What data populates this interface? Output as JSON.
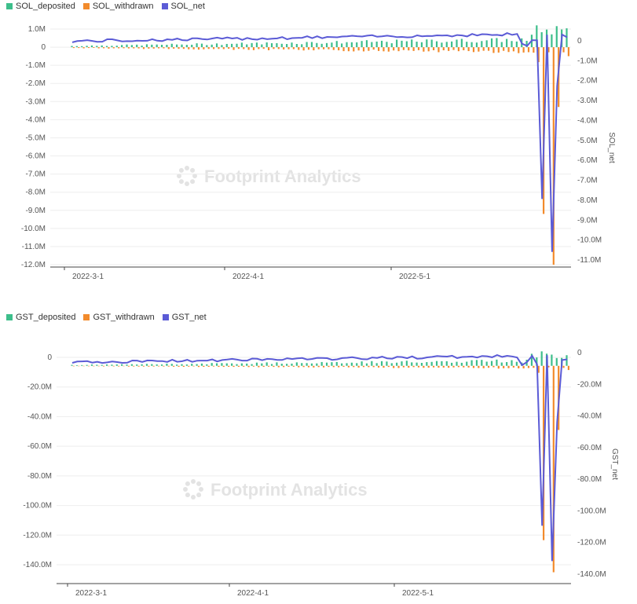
{
  "colors": {
    "deposited": "#3DBE8B",
    "withdrawn": "#F28B2C",
    "net": "#5B5BD6",
    "grid": "#eeeeee",
    "axis": "#444444"
  },
  "watermark": "Footprint Analytics",
  "chart_data": [
    {
      "type": "bar",
      "id": "sol",
      "series": [
        {
          "name": "SOL_deposited",
          "kind": "bar",
          "axis": "left"
        },
        {
          "name": "SOL_withdrawn",
          "kind": "bar",
          "axis": "left"
        },
        {
          "name": "SOL_net",
          "kind": "line",
          "axis": "right"
        }
      ],
      "x_ticks": [
        "2022-3-1",
        "2022-4-1",
        "2022-5-1"
      ],
      "left_axis": {
        "min": -12000000,
        "max": 1000000,
        "ticks": [
          "1.0M",
          "0",
          "-1.0M",
          "-2.0M",
          "-3.0M",
          "-4.0M",
          "-5.0M",
          "-6.0M",
          "-7.0M",
          "-8.0M",
          "-9.0M",
          "-10.0M",
          "-11.0M",
          "-12.0M"
        ]
      },
      "right_axis": {
        "label": "SOL_net",
        "ticks": [
          "0",
          "-1.0M",
          "-2.0M",
          "-3.0M",
          "-4.0M",
          "-5.0M",
          "-6.0M",
          "-7.0M",
          "-8.0M",
          "-9.0M",
          "-10.0M",
          "-11.0M"
        ]
      },
      "values_approx": {
        "deposited_peak": 1000000,
        "withdrawn_min": -12000000,
        "net_min": -11000000
      }
    },
    {
      "type": "bar",
      "id": "gst",
      "series": [
        {
          "name": "GST_deposited",
          "kind": "bar",
          "axis": "left"
        },
        {
          "name": "GST_withdrawn",
          "kind": "bar",
          "axis": "left"
        },
        {
          "name": "GST_net",
          "kind": "line",
          "axis": "right"
        }
      ],
      "x_ticks": [
        "2022-3-1",
        "2022-4-1",
        "2022-5-1"
      ],
      "left_axis": {
        "min": -155000000,
        "max": 10000000,
        "ticks": [
          "0",
          "-20.0M",
          "-40.0M",
          "-60.0M",
          "-80.0M",
          "-100.0M",
          "-120.0M",
          "-140.0M"
        ]
      },
      "right_axis": {
        "label": "GST_net",
        "ticks": [
          "0",
          "-20.0M",
          "-40.0M",
          "-60.0M",
          "-80.0M",
          "-100.0M",
          "-120.0M",
          "-140.0M"
        ]
      },
      "values_approx": {
        "deposited_peak": 8000000,
        "withdrawn_min": -148000000,
        "net_min": -148000000
      }
    }
  ]
}
